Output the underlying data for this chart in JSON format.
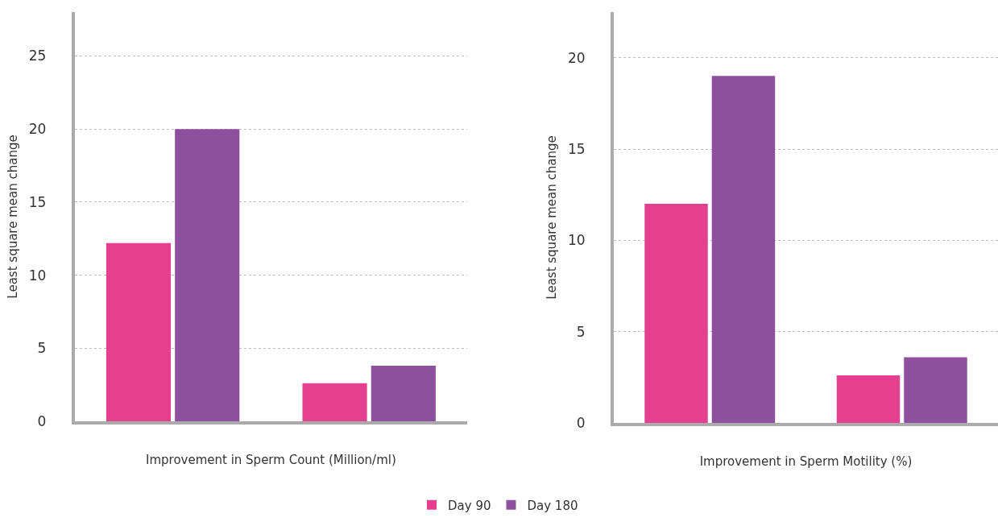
{
  "chart_data": [
    {
      "type": "bar",
      "xlabel": "Improvement in Sperm Count (Million/ml)",
      "ylabel": "Least square mean change",
      "categories": [
        null,
        null
      ],
      "series": [
        {
          "color": "#e5408f",
          "values": [
            12.2,
            2.6
          ]
        },
        {
          "color": "#8e4f9e",
          "values": [
            20,
            3.8
          ]
        }
      ],
      "ylim": [
        0,
        28
      ],
      "yticks": [
        0,
        5,
        10,
        15,
        20,
        25
      ],
      "grid": "y",
      "legend": false,
      "tick_labels": "y"
    },
    {
      "type": "bar",
      "xlabel": "Improvement in Sperm Motility (%)",
      "ylabel": "Least square mean change",
      "categories": [
        null,
        null
      ],
      "series": [
        {
          "name": "Day 90",
          "color": "#e5408f",
          "values": [
            12,
            2.6
          ]
        },
        {
          "name": "Day 180",
          "color": "#8e4f9e",
          "values": [
            19,
            3.6
          ]
        }
      ],
      "ylim": [
        0,
        22.5
      ],
      "yticks": [
        0,
        5,
        10,
        15,
        20
      ],
      "grid": "y",
      "legend": "bottom",
      "tick_labels": "y"
    }
  ]
}
